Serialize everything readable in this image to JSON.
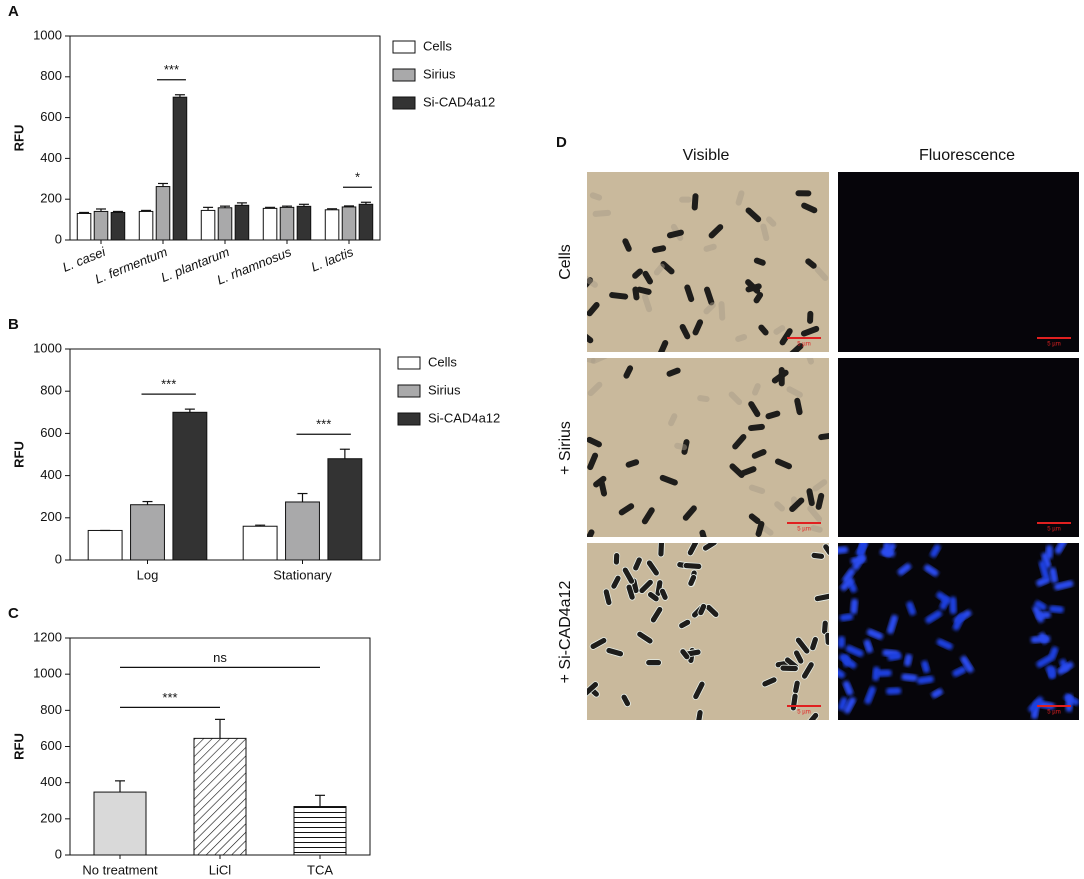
{
  "chart_data": [
    {
      "type": "bar",
      "panel": "A",
      "ylabel": "RFU",
      "categories": [
        "L. casei",
        "L. fermentum",
        "L. plantarum",
        "L. rhamnosus",
        "L. lactis"
      ],
      "ylim": [
        0,
        1000
      ],
      "yticks": [
        0,
        200,
        400,
        600,
        800,
        1000
      ],
      "series": [
        {
          "name": "Cells",
          "color": "#ffffff",
          "values": [
            130,
            140,
            145,
            155,
            148
          ],
          "errors": [
            5,
            5,
            15,
            5,
            5
          ]
        },
        {
          "name": "Sirius",
          "color": "#a9a9aa",
          "values": [
            140,
            262,
            158,
            160,
            162
          ],
          "errors": [
            12,
            15,
            8,
            6,
            5
          ]
        },
        {
          "name": "Si-CAD4a12",
          "color": "#333333",
          "values": [
            135,
            700,
            170,
            165,
            175
          ],
          "errors": [
            5,
            12,
            12,
            10,
            10
          ]
        }
      ],
      "annotations": [
        {
          "text": "***",
          "category": 1,
          "series": [
            1,
            2
          ]
        },
        {
          "text": "*",
          "category": 4,
          "series": [
            1,
            2
          ]
        }
      ]
    },
    {
      "type": "bar",
      "panel": "B",
      "ylabel": "RFU",
      "categories": [
        "Log",
        "Stationary"
      ],
      "ylim": [
        0,
        1000
      ],
      "yticks": [
        0,
        200,
        400,
        600,
        800,
        1000
      ],
      "series": [
        {
          "name": "Cells",
          "color": "#ffffff",
          "values": [
            140,
            160
          ],
          "errors": [
            0,
            5
          ]
        },
        {
          "name": "Sirius",
          "color": "#a9a9aa",
          "values": [
            262,
            275
          ],
          "errors": [
            15,
            40
          ]
        },
        {
          "name": "Si-CAD4a12",
          "color": "#333333",
          "values": [
            700,
            480
          ],
          "errors": [
            15,
            45
          ]
        }
      ],
      "annotations": [
        {
          "text": "***",
          "category": 0,
          "series": [
            1,
            2
          ]
        },
        {
          "text": "***",
          "category": 1,
          "series": [
            1,
            2
          ]
        }
      ]
    },
    {
      "type": "bar",
      "panel": "C",
      "ylabel": "RFU",
      "categories": [
        "No treatment",
        "LiCl",
        "TCA"
      ],
      "values": [
        348,
        645,
        268
      ],
      "errors": [
        62,
        105,
        62
      ],
      "colors": [
        "#d9d9d9",
        "#ffffff",
        "#ffffff"
      ],
      "hatches": [
        "none",
        "diagonal",
        "horizontal"
      ],
      "ylim": [
        0,
        1200
      ],
      "yticks": [
        0,
        200,
        400,
        600,
        800,
        1000,
        1200
      ],
      "annotations": [
        {
          "text": "***",
          "categories": [
            0,
            1
          ]
        },
        {
          "text": "ns",
          "categories": [
            0,
            2
          ]
        }
      ]
    }
  ],
  "panel_d": {
    "label": "D",
    "columns": [
      "Visible",
      "Fluorescence"
    ],
    "rows": [
      "Cells",
      "+ Sirius",
      "+ Si-CAD4a12"
    ],
    "scale_bar": "5 µm"
  }
}
